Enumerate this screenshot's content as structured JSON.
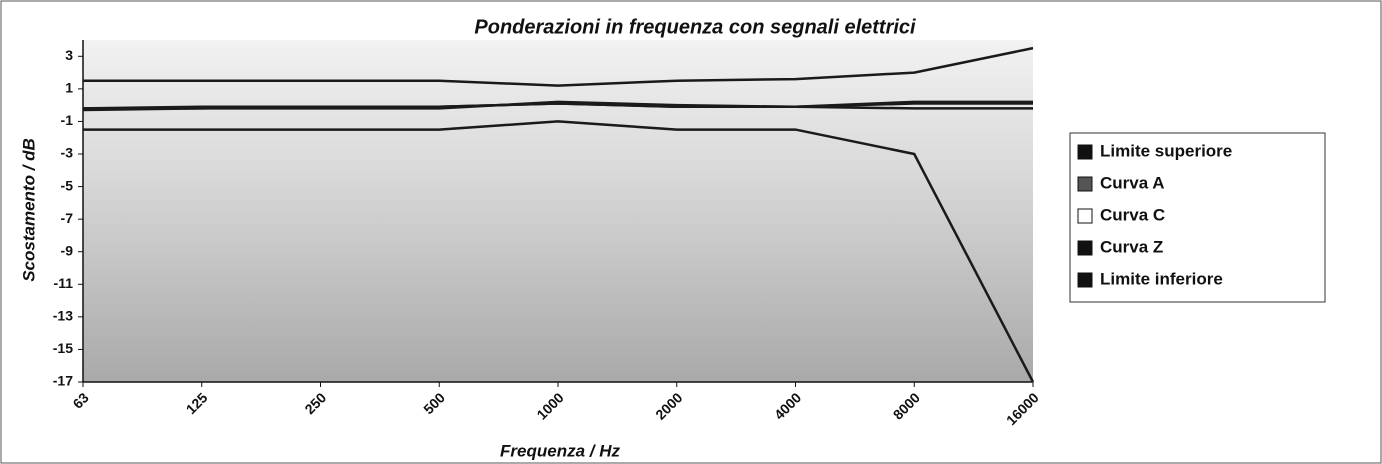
{
  "chart_data": {
    "type": "line",
    "title": "Ponderazioni in frequenza con segnali elettrici",
    "xlabel": "Frequenza / Hz",
    "ylabel": "Scostamento / dB",
    "categories": [
      "63",
      "125",
      "250",
      "500",
      "1000",
      "2000",
      "4000",
      "8000",
      "16000"
    ],
    "ylim": [
      -17,
      4
    ],
    "yticks": [
      3,
      1,
      -1,
      -3,
      -5,
      -7,
      -9,
      -11,
      -13,
      -15,
      -17
    ],
    "line_color": "#1a1a1a",
    "legend": "right",
    "series": [
      {
        "name": "Limite superiore",
        "color": "#111111",
        "values": [
          1.5,
          1.5,
          1.5,
          1.5,
          1.2,
          1.5,
          1.6,
          2,
          3.5
        ]
      },
      {
        "name": "Curva A",
        "color": "#555555",
        "values": [
          -0.2,
          -0.1,
          -0.1,
          -0.1,
          0.1,
          -0.1,
          -0.1,
          0.2,
          0.2
        ]
      },
      {
        "name": "Curva C",
        "color": "#ffffff",
        "values": [
          -0.3,
          -0.2,
          -0.2,
          -0.2,
          0.2,
          0,
          -0.1,
          -0.2,
          -0.2
        ]
      },
      {
        "name": "Curva Z",
        "color": "#111111",
        "values": [
          -0.2,
          -0.2,
          -0.1,
          -0.1,
          0.1,
          -0.1,
          -0.1,
          0.1,
          0.1
        ]
      },
      {
        "name": "Limite inferiore",
        "color": "#111111",
        "values": [
          -1.5,
          -1.5,
          -1.5,
          -1.5,
          -1,
          -1.5,
          -1.5,
          -3,
          -17
        ]
      }
    ]
  }
}
